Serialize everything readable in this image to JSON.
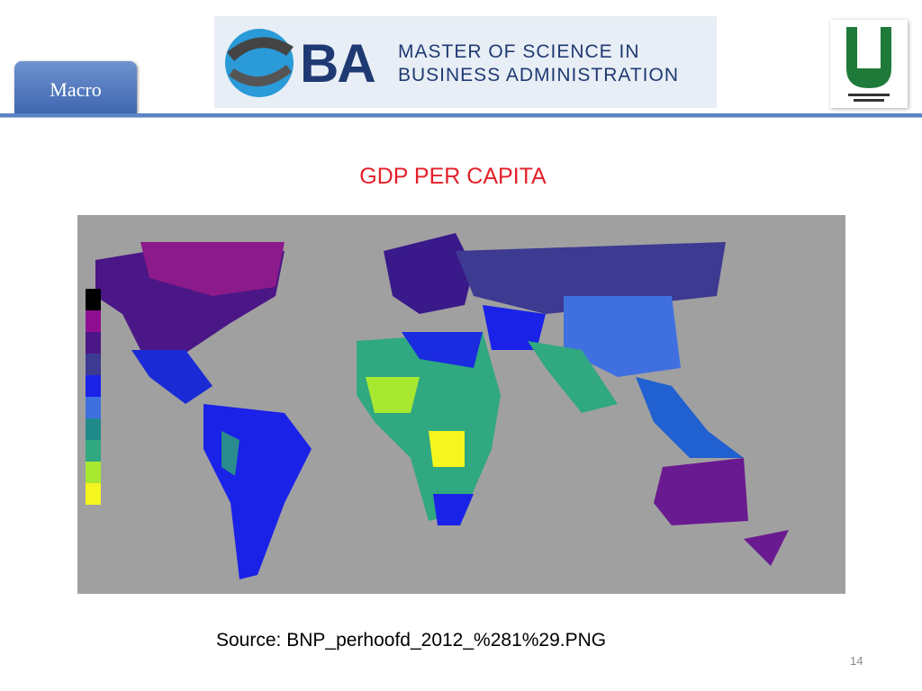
{
  "header": {
    "tab": "Macro"
  },
  "logo": {
    "letters": "BA",
    "line1": "MASTER OF SCIENCE IN",
    "line2": "BUSINESS ADMINISTRATION"
  },
  "title": "GDP PER CAPITA",
  "source": "Source: BNP_perhoofd_2012_%281%29.PNG",
  "page_number": "14"
}
